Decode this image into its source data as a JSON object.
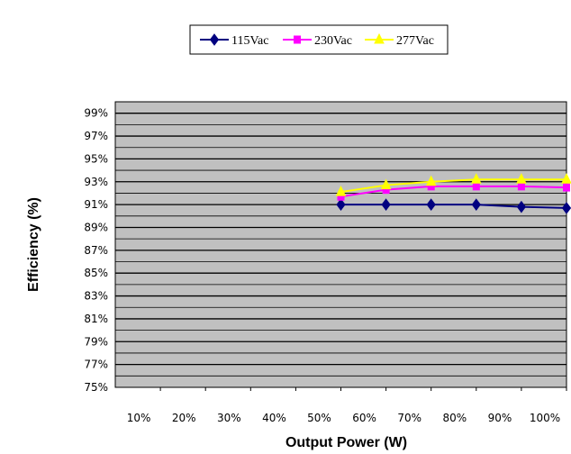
{
  "chart_data": {
    "type": "line",
    "title": "",
    "xlabel": "Output Power (W)",
    "ylabel": "Efficiency (%)",
    "x_ticks": [
      "10%",
      "20%",
      "30%",
      "40%",
      "50%",
      "60%",
      "70%",
      "80%",
      "90%",
      "100%"
    ],
    "y_ticks": [
      "75%",
      "77%",
      "79%",
      "81%",
      "83%",
      "85%",
      "87%",
      "89%",
      "91%",
      "93%",
      "95%",
      "97%",
      "99%"
    ],
    "x_values": [
      50,
      60,
      70,
      80,
      90,
      100
    ],
    "ylim": [
      75,
      100
    ],
    "y_major_grid_step": 2,
    "y_minor_grid_step": 1,
    "grid": true,
    "legend_position": "top-center",
    "plot_background": "#c0c0c0",
    "series": [
      {
        "name": "115Vac",
        "color": "#000080",
        "marker": "diamond",
        "values": [
          91.0,
          91.0,
          91.0,
          91.0,
          90.8,
          90.7
        ]
      },
      {
        "name": "230Vac",
        "color": "#ff00ff",
        "marker": "square",
        "values": [
          91.7,
          92.3,
          92.6,
          92.6,
          92.6,
          92.5
        ]
      },
      {
        "name": "277Vac",
        "color": "#ffff00",
        "marker": "triangle",
        "values": [
          92.1,
          92.7,
          93.0,
          93.2,
          93.2,
          93.2
        ]
      }
    ]
  }
}
